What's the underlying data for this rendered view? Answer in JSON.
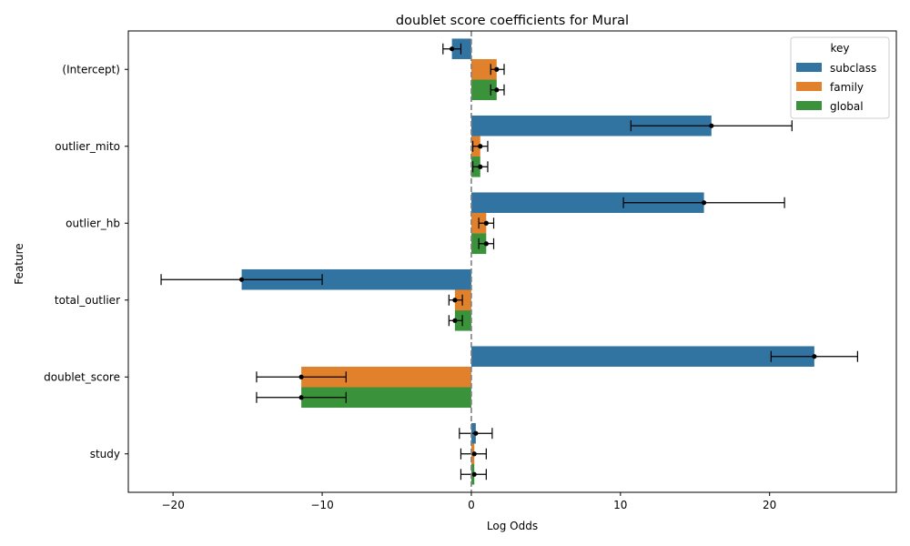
{
  "chart_data": {
    "type": "bar",
    "orientation": "horizontal",
    "title": "doublet score coefficients for Mural",
    "xlabel": "Log Odds",
    "ylabel": "Feature",
    "xlim": [
      -23,
      28.5
    ],
    "xticks": [
      -20,
      -10,
      0,
      10,
      20
    ],
    "xtick_labels": [
      "−20",
      "−10",
      "0",
      "10",
      "20"
    ],
    "categories": [
      "(Intercept)",
      "outlier_mito",
      "outlier_hb",
      "total_outlier",
      "doublet_score",
      "study"
    ],
    "legend": {
      "title": "key",
      "placement": "top-right"
    },
    "reference_line": {
      "x": 0,
      "style": "dashed"
    },
    "grid": false,
    "series": [
      {
        "name": "subclass",
        "color": "#3274a1",
        "values": [
          -1.3,
          16.1,
          15.6,
          -15.4,
          23.0,
          0.3
        ],
        "err_low": [
          -1.9,
          10.7,
          10.2,
          -20.8,
          20.1,
          -0.8
        ],
        "err_high": [
          -0.7,
          21.5,
          21.0,
          -10.0,
          25.9,
          1.4
        ]
      },
      {
        "name": "family",
        "color": "#e1812c",
        "values": [
          1.7,
          0.6,
          1.0,
          -1.1,
          -11.4,
          0.2
        ],
        "err_low": [
          1.3,
          0.1,
          0.5,
          -1.5,
          -14.4,
          -0.7
        ],
        "err_high": [
          2.2,
          1.1,
          1.5,
          -0.6,
          -8.4,
          1.0
        ]
      },
      {
        "name": "global",
        "color": "#3a923a",
        "values": [
          1.7,
          0.6,
          1.0,
          -1.1,
          -11.4,
          0.2
        ],
        "err_low": [
          1.3,
          0.1,
          0.5,
          -1.5,
          -14.4,
          -0.7
        ],
        "err_high": [
          2.2,
          1.1,
          1.5,
          -0.6,
          -8.4,
          1.0
        ]
      }
    ]
  }
}
